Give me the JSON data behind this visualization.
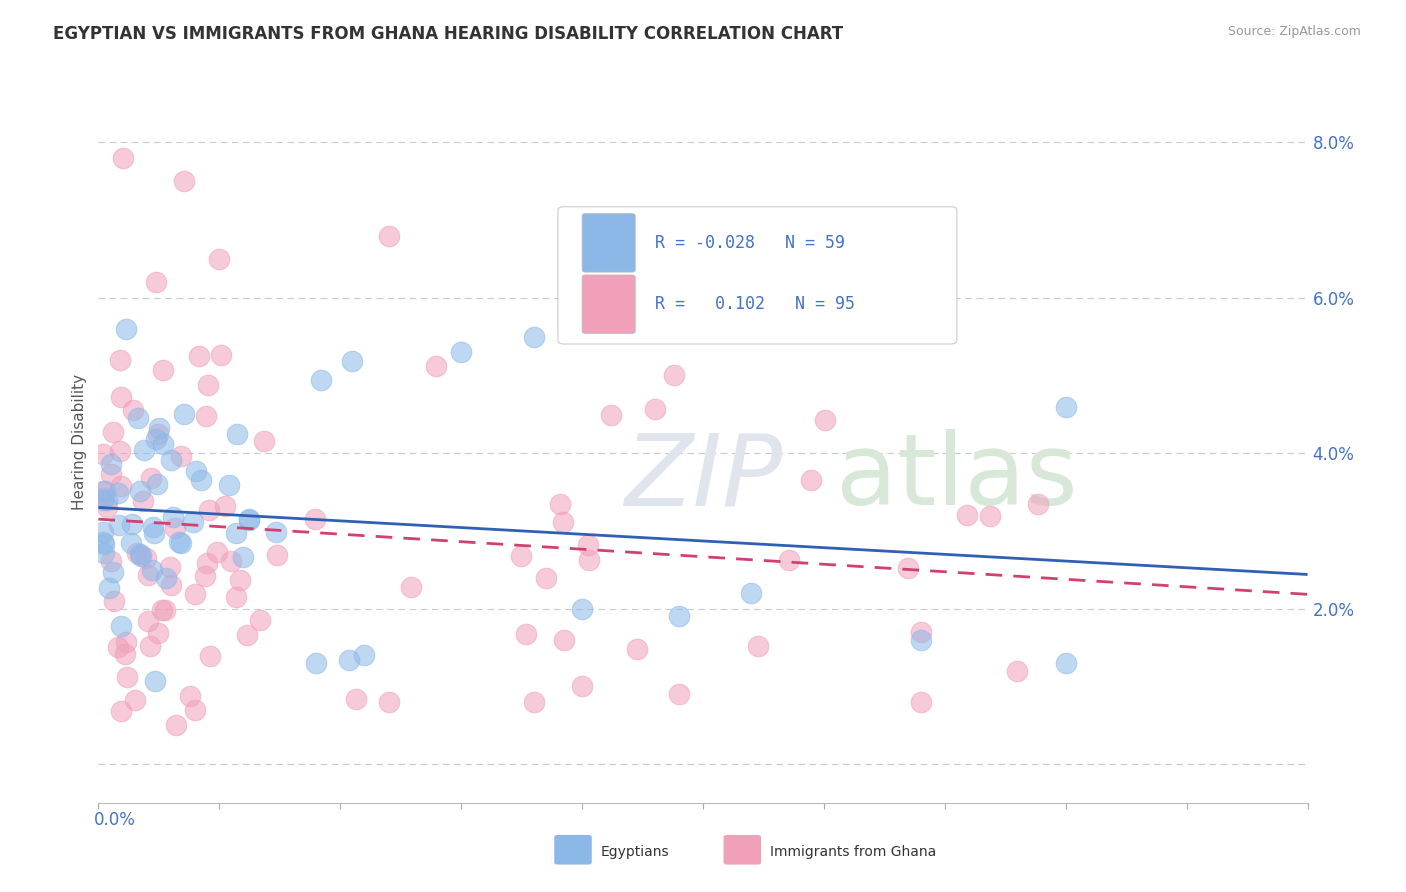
{
  "title": "EGYPTIAN VS IMMIGRANTS FROM GHANA HEARING DISABILITY CORRELATION CHART",
  "source": "Source: ZipAtlas.com",
  "ylabel": "Hearing Disability",
  "xlim": [
    0.0,
    0.25
  ],
  "ylim": [
    -0.005,
    0.088
  ],
  "yticks": [
    0.0,
    0.02,
    0.04,
    0.06,
    0.08
  ],
  "ytick_labels": [
    "",
    "2.0%",
    "4.0%",
    "6.0%",
    "8.0%"
  ],
  "color_egyptian": "#8cb8e8",
  "color_ghana": "#f0a0b8",
  "color_line_egyptian": "#3060b0",
  "color_line_ghana": "#d04070",
  "watermark_zip": "ZIP",
  "watermark_atlas": "atlas",
  "background_color": "#ffffff",
  "grid_color": "#c8c8d8",
  "title_fontsize": 12,
  "source_fontsize": 9,
  "legend_text_color": "#4472c4",
  "axis_text_color": "#4472c4"
}
